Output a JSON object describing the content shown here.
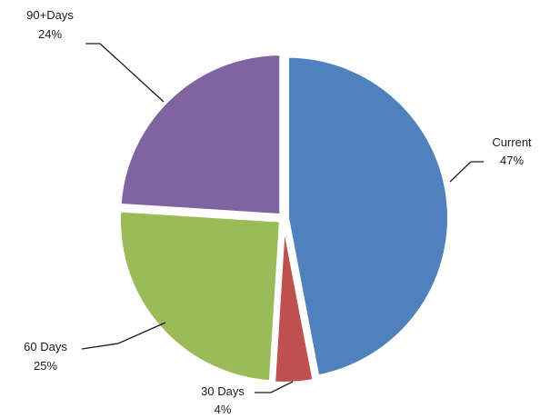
{
  "chart_data": {
    "type": "pie",
    "slices": [
      {
        "label": "Current",
        "value": 47,
        "pct_label": "47%",
        "color": "#4F81BD"
      },
      {
        "label": "30 Days",
        "value": 4,
        "pct_label": "4%",
        "color": "#C0504D"
      },
      {
        "label": "60 Days",
        "value": 25,
        "pct_label": "25%",
        "color": "#9BBB59"
      },
      {
        "label": "90+Days",
        "value": 24,
        "pct_label": "24%",
        "color": "#8064A2"
      }
    ],
    "legend": "none",
    "data_labels": "outside with leader lines"
  }
}
